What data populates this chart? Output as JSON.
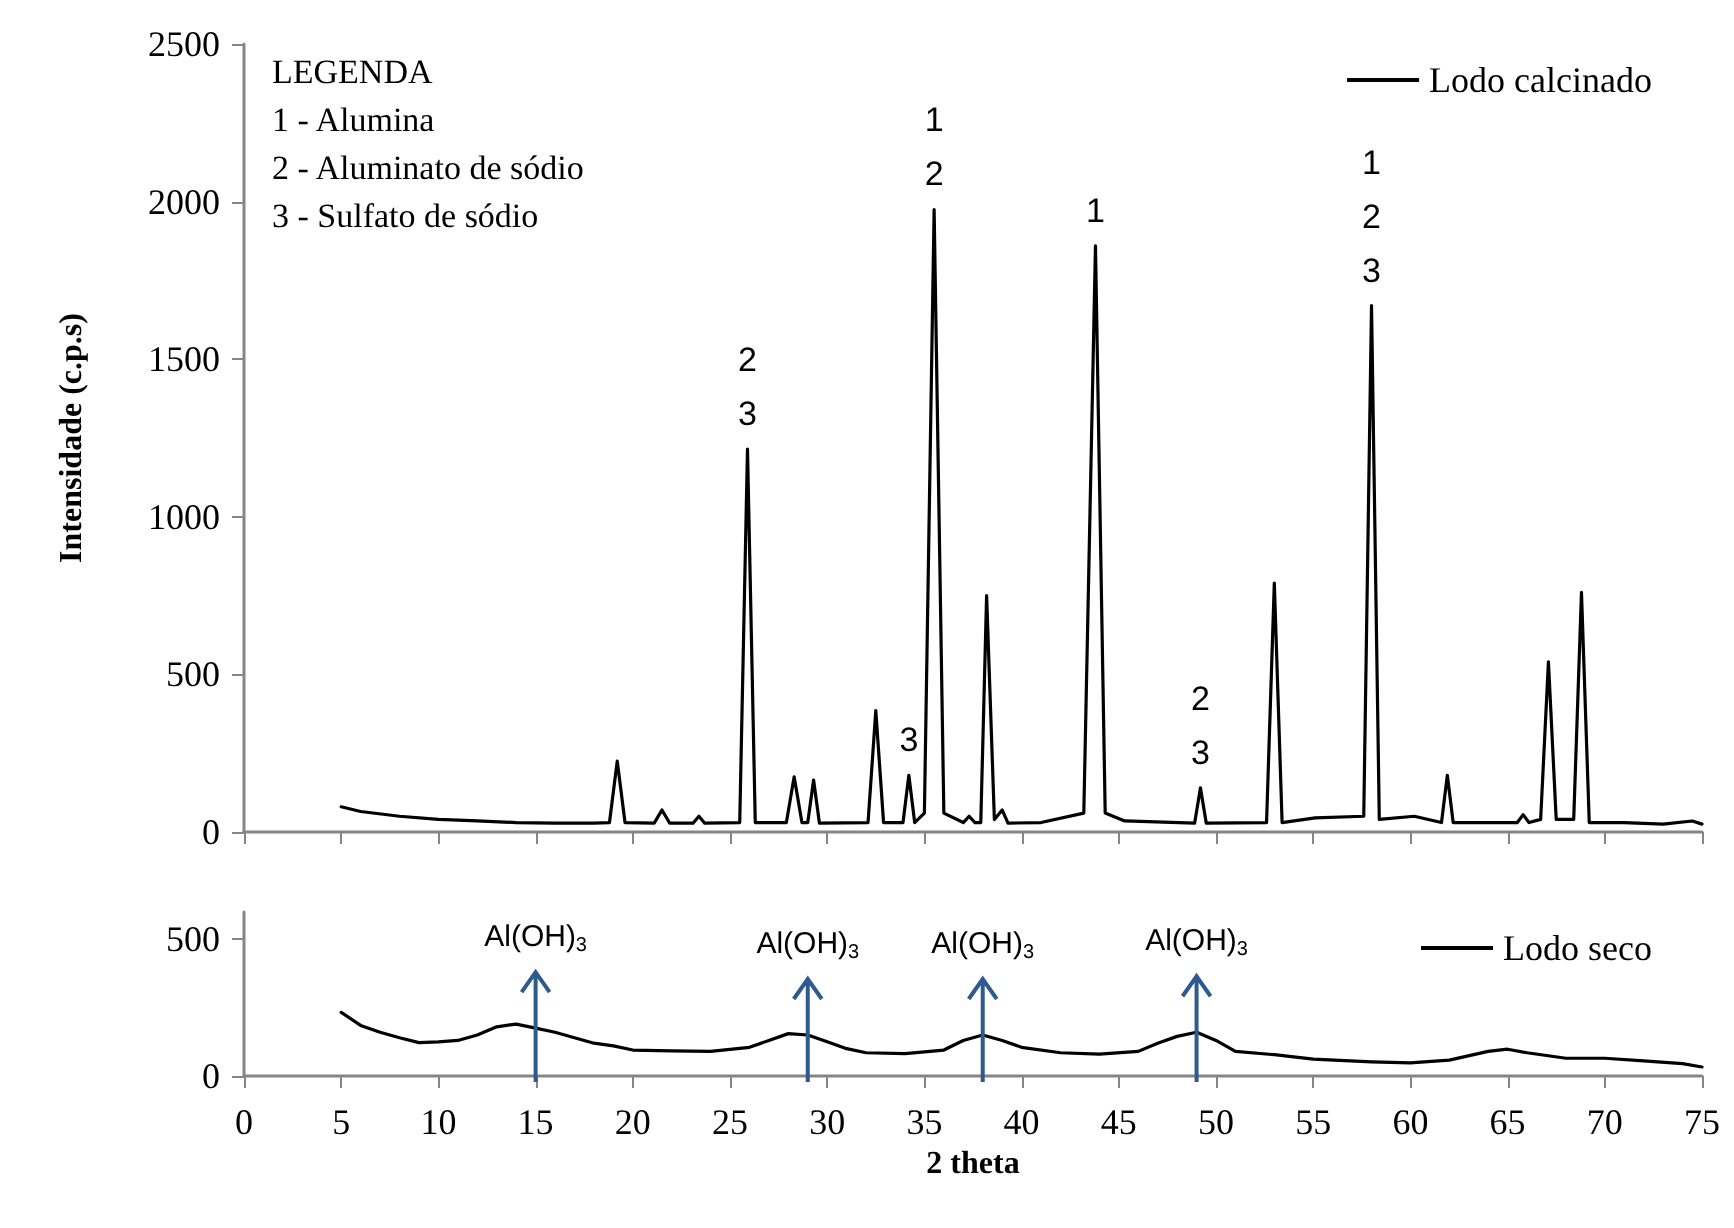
{
  "chart_data": [
    {
      "type": "line",
      "ylabel": "Intensidade (c.p.s)",
      "xlim": [
        0,
        75
      ],
      "xticks": [
        0,
        5,
        10,
        15,
        20,
        25,
        30,
        35,
        40,
        45,
        50,
        55,
        60,
        65,
        70,
        75
      ],
      "ylim": [
        0,
        2500
      ],
      "yticks": [
        0,
        500,
        1000,
        1500,
        2000,
        2500
      ],
      "tick_labels": "y",
      "grid": false,
      "legend": "top right",
      "marker": "none",
      "line_style": "solid",
      "series": [
        {
          "name": "Lodo calcinado",
          "color": "#000000",
          "x": [
            5,
            6,
            8,
            10,
            12,
            14,
            16,
            18,
            18.8,
            19.2,
            19.6,
            21.1,
            21.5,
            21.9,
            23.1,
            23.4,
            23.7,
            25.5,
            25.9,
            26.3,
            27.9,
            28.3,
            28.7,
            29.0,
            29.3,
            29.6,
            32.1,
            32.5,
            32.9,
            33.9,
            34.2,
            34.5,
            35.0,
            35.5,
            36.0,
            37.0,
            37.3,
            37.6,
            37.9,
            38.2,
            38.6,
            39.0,
            39.3,
            41.0,
            43.2,
            43.8,
            44.3,
            45.3,
            48.9,
            49.2,
            49.5,
            52.6,
            53.0,
            53.4,
            55.1,
            57.6,
            58.0,
            58.4,
            60.2,
            61.6,
            61.9,
            62.2,
            65.5,
            65.8,
            66.1,
            66.7,
            67.1,
            67.5,
            68.4,
            68.8,
            69.2,
            71,
            73,
            74.5,
            75
          ],
          "values": [
            80,
            65,
            50,
            40,
            35,
            30,
            28,
            28,
            30,
            225,
            30,
            28,
            70,
            28,
            28,
            50,
            28,
            30,
            1215,
            30,
            30,
            175,
            30,
            30,
            165,
            28,
            30,
            385,
            30,
            30,
            180,
            30,
            60,
            1975,
            60,
            30,
            50,
            30,
            30,
            750,
            40,
            70,
            28,
            30,
            60,
            1860,
            60,
            35,
            28,
            140,
            28,
            30,
            790,
            30,
            45,
            50,
            1670,
            40,
            50,
            30,
            180,
            30,
            30,
            55,
            30,
            40,
            540,
            40,
            40,
            760,
            30,
            30,
            25,
            35,
            25
          ]
        }
      ],
      "annotations": [
        "LEGENDA",
        "1 - Alumina",
        "2 - Aluminato de sódio",
        "3 - Sulfato de sódio",
        {
          "text": "2\n3",
          "x": 25.9,
          "y": 1215
        },
        {
          "text": "3",
          "x": 34.2,
          "y": 180
        },
        {
          "text": "1\n2",
          "x": 35.5,
          "y": 1975
        },
        {
          "text": "1",
          "x": 43.8,
          "y": 1860
        },
        {
          "text": "2\n3",
          "x": 49.2,
          "y": 140
        },
        {
          "text": "1\n2\n3",
          "x": 58.0,
          "y": 1670
        }
      ]
    },
    {
      "type": "line",
      "xlabel": "2 theta",
      "xlim": [
        0,
        75
      ],
      "xticks": [
        0,
        5,
        10,
        15,
        20,
        25,
        30,
        35,
        40,
        45,
        50,
        55,
        60,
        65,
        70,
        75
      ],
      "ylim": [
        0,
        600
      ],
      "yticks": [
        0,
        500
      ],
      "grid": false,
      "legend": "top right",
      "marker": "none",
      "line_style": "solid",
      "series": [
        {
          "name": "Lodo seco",
          "color": "#000000",
          "x": [
            5,
            6,
            7,
            8,
            9,
            10,
            11,
            12,
            13,
            14,
            15,
            16,
            17,
            18,
            19,
            20,
            22,
            24,
            26,
            27,
            28,
            29,
            30,
            31,
            32,
            34,
            36,
            37,
            38,
            39,
            40,
            42,
            44,
            46,
            47,
            48,
            49,
            50,
            51,
            53,
            55,
            58,
            60,
            62,
            64,
            65,
            66,
            68,
            70,
            72,
            74,
            75
          ],
          "values": [
            233,
            185,
            160,
            140,
            122,
            125,
            130,
            150,
            180,
            190,
            175,
            160,
            140,
            120,
            110,
            95,
            92,
            90,
            105,
            130,
            155,
            150,
            125,
            100,
            85,
            82,
            95,
            130,
            150,
            130,
            105,
            85,
            80,
            90,
            120,
            145,
            160,
            130,
            90,
            78,
            62,
            52,
            48,
            58,
            90,
            98,
            85,
            65,
            65,
            55,
            45,
            33
          ]
        }
      ],
      "annotations": [
        {
          "text": "Al(OH)$_{3}$",
          "x": 15,
          "y": 175
        },
        {
          "text": "Al(OH)$_{3}$",
          "x": 29,
          "y": 150
        },
        {
          "text": "Al(OH)$_{3}$",
          "x": 38,
          "y": 150
        },
        {
          "text": "Al(OH)$_{3}$",
          "x": 49,
          "y": 160
        }
      ]
    }
  ]
}
